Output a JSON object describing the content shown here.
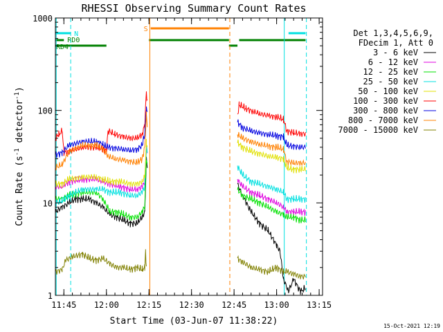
{
  "chart_data": {
    "type": "line",
    "title": "RHESSI Observing Summary Count Rates",
    "xlabel": "Start Time (03-Jun-07 11:38:22)",
    "ylabel_main": "Count Rate (s",
    "ylabel_sup1": "-1",
    "ylabel_mid": " detector",
    "ylabel_sup2": "-1",
    "ylabel_end": ")",
    "yscale": "log",
    "ylim": [
      1,
      1000
    ],
    "xlim_minutes": [
      11.7,
      13.27
    ],
    "y_ticks": [
      {
        "value": 1,
        "label": "1"
      },
      {
        "value": 10,
        "label": "10"
      },
      {
        "value": 100,
        "label": "100"
      },
      {
        "value": 1000,
        "label": "1000"
      }
    ],
    "x_ticks": [
      {
        "value": 11.75,
        "label": "11:45"
      },
      {
        "value": 12.0,
        "label": "12:00"
      },
      {
        "value": 12.25,
        "label": "12:15"
      },
      {
        "value": 12.5,
        "label": "12:30"
      },
      {
        "value": 12.75,
        "label": "12:45"
      },
      {
        "value": 13.0,
        "label": "13:00"
      },
      {
        "value": 13.25,
        "label": "13:15"
      }
    ],
    "legend_header": [
      "Det 1,3,4,5,6,9,",
      "FDecim 1, Att 0"
    ],
    "series": [
      {
        "name": "3 - 6 keV",
        "color": "#000000",
        "points": [
          [
            11.7,
            8
          ],
          [
            11.74,
            9
          ],
          [
            11.78,
            10
          ],
          [
            11.82,
            11
          ],
          [
            11.86,
            11
          ],
          [
            11.9,
            11
          ],
          [
            11.94,
            10
          ],
          [
            11.98,
            9
          ],
          [
            12.02,
            7.5
          ],
          [
            12.06,
            7
          ],
          [
            12.1,
            6.5
          ],
          [
            12.14,
            6
          ],
          [
            12.18,
            6
          ],
          [
            12.21,
            7
          ],
          [
            12.225,
            8
          ],
          [
            12.235,
            30
          ],
          [
            12.24,
            25
          ],
          [
            12.77,
            16
          ],
          [
            12.8,
            12
          ],
          [
            12.85,
            8
          ],
          [
            12.9,
            6
          ],
          [
            12.95,
            5
          ],
          [
            13.0,
            3.5
          ],
          [
            13.02,
            3
          ],
          [
            13.04,
            1.5
          ],
          [
            13.07,
            1.1
          ],
          [
            13.1,
            1.5
          ],
          [
            13.14,
            1.1
          ],
          [
            13.17,
            1.2
          ]
        ]
      },
      {
        "name": "6 - 12 keV",
        "color": "#e000e0",
        "points": [
          [
            11.7,
            15
          ],
          [
            11.74,
            15
          ],
          [
            11.78,
            17
          ],
          [
            11.86,
            18
          ],
          [
            11.94,
            18
          ],
          [
            11.98,
            17
          ],
          [
            12.02,
            16
          ],
          [
            12.08,
            15
          ],
          [
            12.14,
            14
          ],
          [
            12.18,
            14
          ],
          [
            12.21,
            15
          ],
          [
            12.225,
            17
          ],
          [
            12.235,
            40
          ],
          [
            12.24,
            35
          ],
          [
            12.77,
            18
          ],
          [
            12.8,
            15
          ],
          [
            12.85,
            13
          ],
          [
            12.9,
            12
          ],
          [
            12.95,
            11
          ],
          [
            13.0,
            10
          ],
          [
            13.04,
            9
          ],
          [
            13.06,
            8
          ],
          [
            13.1,
            8
          ],
          [
            13.14,
            8
          ],
          [
            13.17,
            8
          ]
        ]
      },
      {
        "name": "12 - 25 keV",
        "color": "#00e000",
        "points": [
          [
            11.7,
            11
          ],
          [
            11.74,
            11
          ],
          [
            11.78,
            12
          ],
          [
            11.86,
            13
          ],
          [
            11.94,
            13
          ],
          [
            11.98,
            11
          ],
          [
            12.02,
            8
          ],
          [
            12.06,
            8
          ],
          [
            12.1,
            7.5
          ],
          [
            12.14,
            7
          ],
          [
            12.18,
            7
          ],
          [
            12.21,
            8
          ],
          [
            12.225,
            9
          ],
          [
            12.235,
            30
          ],
          [
            12.24,
            25
          ],
          [
            12.77,
            14
          ],
          [
            12.8,
            12
          ],
          [
            12.85,
            11
          ],
          [
            12.9,
            10
          ],
          [
            12.95,
            9
          ],
          [
            13.0,
            8
          ],
          [
            13.04,
            7.5
          ],
          [
            13.06,
            7
          ],
          [
            13.1,
            7
          ],
          [
            13.14,
            6.5
          ],
          [
            13.17,
            6.5
          ]
        ]
      },
      {
        "name": "25 - 50 keV",
        "color": "#00e0e0",
        "points": [
          [
            11.7,
            10
          ],
          [
            11.74,
            10.5
          ],
          [
            11.78,
            12
          ],
          [
            11.86,
            14
          ],
          [
            11.94,
            14
          ],
          [
            11.98,
            14
          ],
          [
            12.02,
            13
          ],
          [
            12.08,
            13
          ],
          [
            12.14,
            12
          ],
          [
            12.18,
            12
          ],
          [
            12.21,
            13
          ],
          [
            12.225,
            15
          ],
          [
            12.235,
            40
          ],
          [
            12.24,
            35
          ],
          [
            12.77,
            25
          ],
          [
            12.8,
            20
          ],
          [
            12.85,
            17
          ],
          [
            12.9,
            16
          ],
          [
            12.95,
            15
          ],
          [
            13.0,
            14
          ],
          [
            13.04,
            13
          ],
          [
            13.06,
            11
          ],
          [
            13.1,
            11
          ],
          [
            13.14,
            11
          ],
          [
            13.17,
            11
          ]
        ]
      },
      {
        "name": "50 - 100 keV",
        "color": "#e0e000",
        "points": [
          [
            11.7,
            16
          ],
          [
            11.74,
            16
          ],
          [
            11.78,
            18
          ],
          [
            11.86,
            19
          ],
          [
            11.94,
            19
          ],
          [
            11.98,
            18
          ],
          [
            12.02,
            17
          ],
          [
            12.08,
            17
          ],
          [
            12.14,
            16
          ],
          [
            12.18,
            16
          ],
          [
            12.21,
            17
          ],
          [
            12.225,
            19
          ],
          [
            12.235,
            45
          ],
          [
            12.24,
            40
          ],
          [
            12.77,
            45
          ],
          [
            12.8,
            40
          ],
          [
            12.85,
            36
          ],
          [
            12.9,
            34
          ],
          [
            12.95,
            32
          ],
          [
            13.0,
            31
          ],
          [
            13.04,
            30
          ],
          [
            13.06,
            24
          ],
          [
            13.1,
            23
          ],
          [
            13.14,
            23
          ],
          [
            13.17,
            23
          ]
        ]
      },
      {
        "name": "100 - 300 keV",
        "color": "#ff0000",
        "points": [
          [
            11.7,
            50
          ],
          [
            11.72,
            55
          ],
          [
            11.74,
            60
          ],
          [
            11.75,
            35
          ],
          [
            11.78,
            36
          ],
          [
            11.86,
            40
          ],
          [
            11.94,
            40
          ],
          [
            11.98,
            38
          ],
          [
            12.0,
            37
          ],
          [
            12.01,
            60
          ],
          [
            12.05,
            55
          ],
          [
            12.1,
            52
          ],
          [
            12.14,
            50
          ],
          [
            12.18,
            50
          ],
          [
            12.21,
            55
          ],
          [
            12.225,
            70
          ],
          [
            12.235,
            160
          ],
          [
            12.24,
            120
          ],
          [
            12.77,
            90
          ],
          [
            12.78,
            115
          ],
          [
            12.82,
            105
          ],
          [
            12.86,
            98
          ],
          [
            12.9,
            92
          ],
          [
            12.95,
            88
          ],
          [
            13.0,
            85
          ],
          [
            13.04,
            80
          ],
          [
            13.06,
            60
          ],
          [
            13.1,
            57
          ],
          [
            13.14,
            56
          ],
          [
            13.17,
            56
          ]
        ]
      },
      {
        "name": "300 - 800 keV",
        "color": "#0000e0",
        "points": [
          [
            11.7,
            33
          ],
          [
            11.74,
            35
          ],
          [
            11.78,
            42
          ],
          [
            11.86,
            46
          ],
          [
            11.94,
            46
          ],
          [
            11.98,
            43
          ],
          [
            12.0,
            40
          ],
          [
            12.01,
            40
          ],
          [
            12.05,
            39
          ],
          [
            12.1,
            38
          ],
          [
            12.14,
            37
          ],
          [
            12.18,
            38
          ],
          [
            12.21,
            42
          ],
          [
            12.225,
            55
          ],
          [
            12.235,
            110
          ],
          [
            12.24,
            90
          ],
          [
            12.77,
            75
          ],
          [
            12.8,
            65
          ],
          [
            12.85,
            60
          ],
          [
            12.9,
            57
          ],
          [
            12.95,
            55
          ],
          [
            13.0,
            53
          ],
          [
            13.04,
            52
          ],
          [
            13.06,
            42
          ],
          [
            13.1,
            41
          ],
          [
            13.14,
            40
          ],
          [
            13.17,
            40
          ]
        ]
      },
      {
        "name": "800 - 7000 keV",
        "color": "#ff8000",
        "points": [
          [
            11.7,
            24
          ],
          [
            11.74,
            26
          ],
          [
            11.78,
            36
          ],
          [
            11.86,
            42
          ],
          [
            11.94,
            42
          ],
          [
            11.98,
            38
          ],
          [
            12.0,
            35
          ],
          [
            12.01,
            32
          ],
          [
            12.05,
            30
          ],
          [
            12.1,
            29
          ],
          [
            12.14,
            28
          ],
          [
            12.18,
            27
          ],
          [
            12.21,
            30
          ],
          [
            12.225,
            40
          ],
          [
            12.235,
            90
          ],
          [
            12.24,
            70
          ],
          [
            12.77,
            55
          ],
          [
            12.8,
            50
          ],
          [
            12.85,
            46
          ],
          [
            12.9,
            43
          ],
          [
            12.95,
            41
          ],
          [
            13.0,
            40
          ],
          [
            13.04,
            38
          ],
          [
            13.06,
            28
          ],
          [
            13.1,
            27
          ],
          [
            13.14,
            27
          ],
          [
            13.17,
            27
          ]
        ]
      },
      {
        "name": "7000 - 15000 keV",
        "color": "#808000",
        "points": [
          [
            11.7,
            1.8
          ],
          [
            11.74,
            1.9
          ],
          [
            11.76,
            2.4
          ],
          [
            11.8,
            2.6
          ],
          [
            11.86,
            2.8
          ],
          [
            11.9,
            2.5
          ],
          [
            11.94,
            2.4
          ],
          [
            11.98,
            2.5
          ],
          [
            12.02,
            2.2
          ],
          [
            12.06,
            2.0
          ],
          [
            12.1,
            2.0
          ],
          [
            12.14,
            1.9
          ],
          [
            12.18,
            2.0
          ],
          [
            12.21,
            1.9
          ],
          [
            12.225,
            2.0
          ],
          [
            12.23,
            3.0
          ],
          [
            12.235,
            2.0
          ],
          [
            12.77,
            2.5
          ],
          [
            12.8,
            2.3
          ],
          [
            12.85,
            2.0
          ],
          [
            12.9,
            1.9
          ],
          [
            12.95,
            1.8
          ],
          [
            13.0,
            2.0
          ],
          [
            13.04,
            1.8
          ],
          [
            13.06,
            1.8
          ],
          [
            13.1,
            1.7
          ],
          [
            13.14,
            1.6
          ],
          [
            13.17,
            1.6
          ]
        ]
      }
    ],
    "flag_bars": [
      {
        "label": "N",
        "color": "#00e0e0",
        "x0": 11.7,
        "x1": 11.79,
        "level": 1
      },
      {
        "label": "N",
        "color": "#00e0e0",
        "x0": 13.07,
        "x1": 13.17,
        "level": 1,
        "hide_label": true
      },
      {
        "label": "RD0",
        "color": "#008000",
        "x0": 11.7,
        "x1": 11.75,
        "level": 2
      },
      {
        "label": "S",
        "color": "#ff8000",
        "x0": 12.26,
        "x1": 12.72,
        "level": 0
      },
      {
        "label": "",
        "color": "#008000",
        "x0": 12.25,
        "x1": 12.72,
        "level": 2
      },
      {
        "label": "",
        "color": "#008000",
        "x0": 12.72,
        "x1": 12.77,
        "level": 3
      },
      {
        "label": "",
        "color": "#008000",
        "x0": 12.78,
        "x1": 13.17,
        "level": 2
      },
      {
        "label": "RD4",
        "color": "#008000",
        "x0": 11.7,
        "x1": 12.0,
        "level": 3
      }
    ],
    "vlines": [
      {
        "x": 11.705,
        "color": "#00e0e0",
        "dash": false
      },
      {
        "x": 11.79,
        "color": "#00e0e0",
        "dash": true
      },
      {
        "x": 12.255,
        "color": "#ff8000",
        "dash": false
      },
      {
        "x": 12.725,
        "color": "#ff8000",
        "dash": true
      },
      {
        "x": 13.045,
        "color": "#00e0e0",
        "dash": false
      },
      {
        "x": 13.175,
        "color": "#00e0e0",
        "dash": true
      }
    ]
  },
  "footer_timestamp": "15-Oct-2021 12:19"
}
